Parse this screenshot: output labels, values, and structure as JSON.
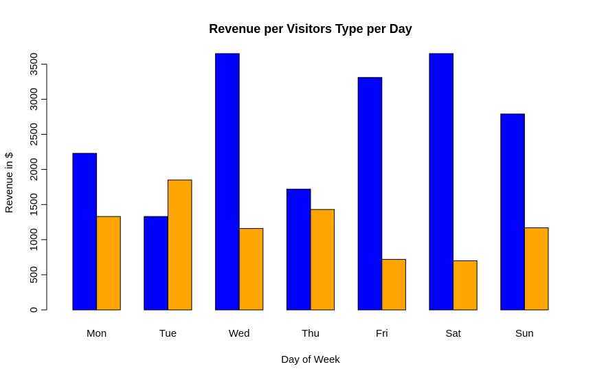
{
  "chart_data": {
    "type": "bar",
    "title": "Revenue per Visitors Type per Day",
    "xlabel": "Day of Week",
    "ylabel": "Revenue in $",
    "categories": [
      "Mon",
      "Tue",
      "Wed",
      "Thu",
      "Fri",
      "Sat",
      "Sun"
    ],
    "series": [
      {
        "color": "#0000ff",
        "values": [
          2230,
          1330,
          3650,
          1720,
          3310,
          3650,
          2790
        ]
      },
      {
        "color": "#ffa500",
        "values": [
          1330,
          1850,
          1160,
          1430,
          720,
          700,
          1170
        ]
      }
    ],
    "ylim": [
      0,
      3650
    ],
    "yticks": [
      0,
      500,
      1000,
      1500,
      2000,
      2500,
      3000,
      3500
    ],
    "grid": false,
    "legend": "none"
  }
}
